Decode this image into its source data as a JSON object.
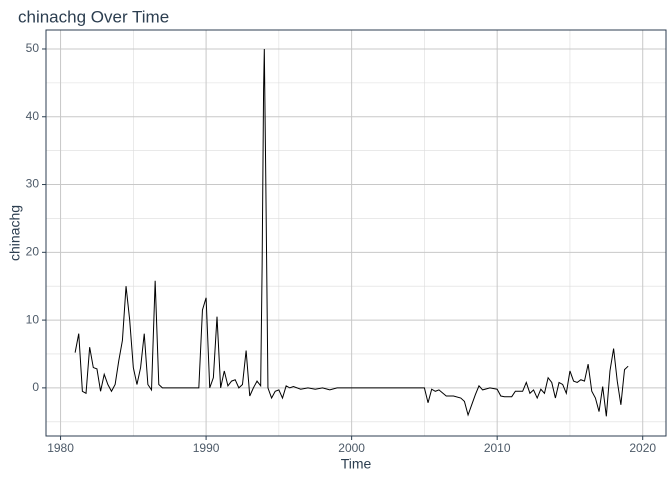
{
  "chart_data": {
    "type": "line",
    "title": "chinachg Over Time",
    "x_label": "Time",
    "y_label": "chinachg",
    "x": [
      1981.0,
      1981.25,
      1981.5,
      1981.75,
      1982.0,
      1982.25,
      1982.5,
      1982.75,
      1983.0,
      1983.25,
      1983.5,
      1983.75,
      1984.0,
      1984.25,
      1984.5,
      1984.75,
      1985.0,
      1985.25,
      1985.5,
      1985.75,
      1986.0,
      1986.25,
      1986.5,
      1986.75,
      1987.0,
      1989.5,
      1989.75,
      1990.0,
      1990.25,
      1990.5,
      1990.75,
      1991.0,
      1991.25,
      1991.5,
      1991.75,
      1992.0,
      1992.25,
      1992.5,
      1992.75,
      1993.0,
      1993.25,
      1993.5,
      1993.75,
      1993.85,
      1993.95,
      1994.0,
      1994.1,
      1994.25,
      1994.5,
      1994.75,
      1995.0,
      1995.25,
      1995.5,
      1995.75,
      1996.0,
      1996.5,
      1997.0,
      1997.5,
      1998.0,
      1998.5,
      1999.0,
      2005.0,
      2005.25,
      2005.5,
      2005.75,
      2006.0,
      2006.5,
      2007.0,
      2007.5,
      2007.75,
      2008.0,
      2008.25,
      2008.5,
      2008.75,
      2009.0,
      2009.5,
      2010.0,
      2010.25,
      2010.5,
      2011.0,
      2011.25,
      2011.75,
      2012.0,
      2012.25,
      2012.5,
      2012.75,
      2013.0,
      2013.25,
      2013.5,
      2013.75,
      2014.0,
      2014.25,
      2014.5,
      2014.75,
      2015.0,
      2015.25,
      2015.5,
      2015.75,
      2016.0,
      2016.25,
      2016.5,
      2016.75,
      2017.0,
      2017.25,
      2017.5,
      2017.75,
      2018.0,
      2018.25,
      2018.5,
      2018.75,
      2019.0
    ],
    "series": [
      {
        "name": "chinachg",
        "color": "#000000",
        "values": [
          5.2,
          8,
          -0.5,
          -0.8,
          6,
          3,
          2.8,
          -0.5,
          2,
          0.5,
          -0.5,
          0.5,
          4,
          7,
          15,
          10,
          3,
          0.5,
          3,
          8,
          0.5,
          -0.3,
          15.8,
          0.5,
          0,
          0,
          11.5,
          13.3,
          0,
          1.5,
          10.5,
          0,
          2.5,
          0.3,
          1,
          1.2,
          0,
          0.5,
          5.5,
          -1.2,
          0,
          1,
          0.3,
          18,
          44,
          50,
          31,
          0,
          -1.5,
          -0.5,
          -0.3,
          -1.5,
          0.3,
          0,
          0.2,
          -0.2,
          0,
          -0.2,
          0,
          -0.3,
          0,
          0,
          -2.2,
          -0.2,
          -0.5,
          -0.3,
          -1.2,
          -1.2,
          -1.5,
          -2,
          -4,
          -2.5,
          -1,
          0.3,
          -0.3,
          0,
          -0.2,
          -1.2,
          -1.3,
          -1.3,
          -0.5,
          -0.5,
          0.8,
          -0.8,
          -0.3,
          -1.5,
          -0.2,
          -0.8,
          1.5,
          0.8,
          -1.5,
          0.8,
          0.5,
          -0.8,
          2.5,
          1,
          0.8,
          1.2,
          1,
          3.5,
          -0.5,
          -1.5,
          -3.5,
          0.2,
          -4.2,
          2.5,
          5.8,
          1,
          -2.5,
          2.7,
          3.2
        ]
      }
    ],
    "xlim": [
      1979,
      2021.6
    ],
    "ylim": [
      -7.1,
      52.8
    ],
    "xticks": [
      1980,
      1990,
      2000,
      2010,
      2020
    ],
    "yticks": [
      0,
      10,
      20,
      30,
      40,
      50
    ],
    "grid": true
  }
}
